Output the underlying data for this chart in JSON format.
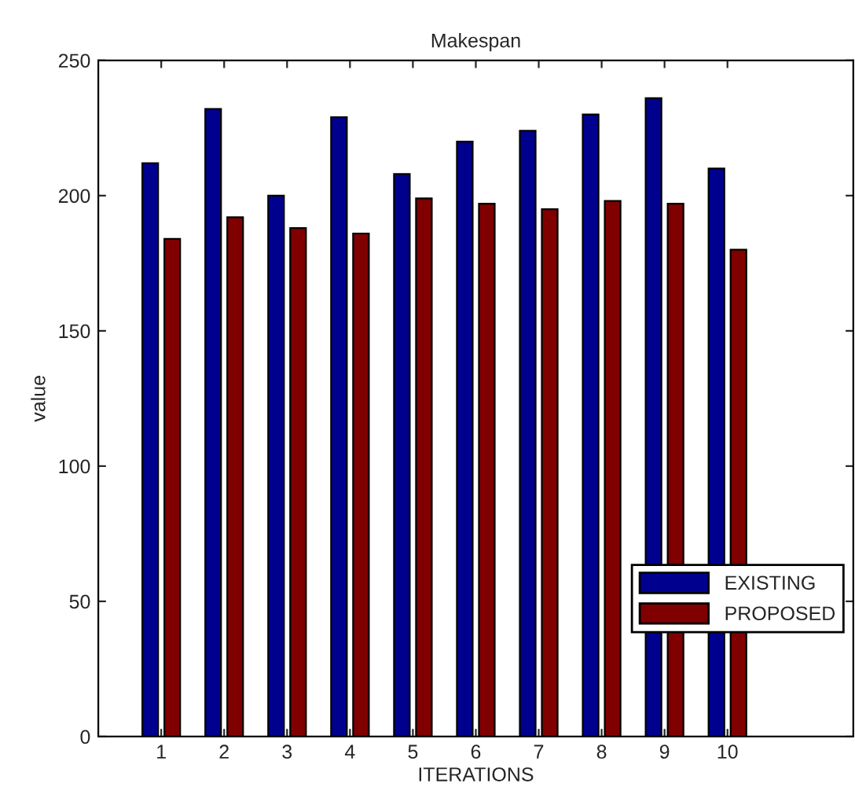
{
  "chart_data": {
    "type": "bar",
    "title": "Makespan",
    "xlabel": "ITERATIONS",
    "ylabel": "value",
    "x": [
      1,
      2,
      3,
      4,
      5,
      6,
      7,
      8,
      9,
      10
    ],
    "series": [
      {
        "name": "EXISTING",
        "color": "#00008f",
        "values": [
          212,
          232,
          200,
          229,
          208,
          220,
          224,
          230,
          236,
          210
        ]
      },
      {
        "name": "PROPOSED",
        "color": "#800000",
        "values": [
          184,
          192,
          188,
          186,
          199,
          197,
          195,
          198,
          197,
          180
        ]
      }
    ],
    "xlim": [
      0,
      12
    ],
    "xticks": [
      1,
      2,
      3,
      4,
      5,
      6,
      7,
      8,
      9,
      10
    ],
    "ylim": [
      0,
      250
    ],
    "yticks": [
      0,
      50,
      100,
      150,
      200,
      250
    ],
    "grid": false,
    "legend": "bottom right"
  }
}
